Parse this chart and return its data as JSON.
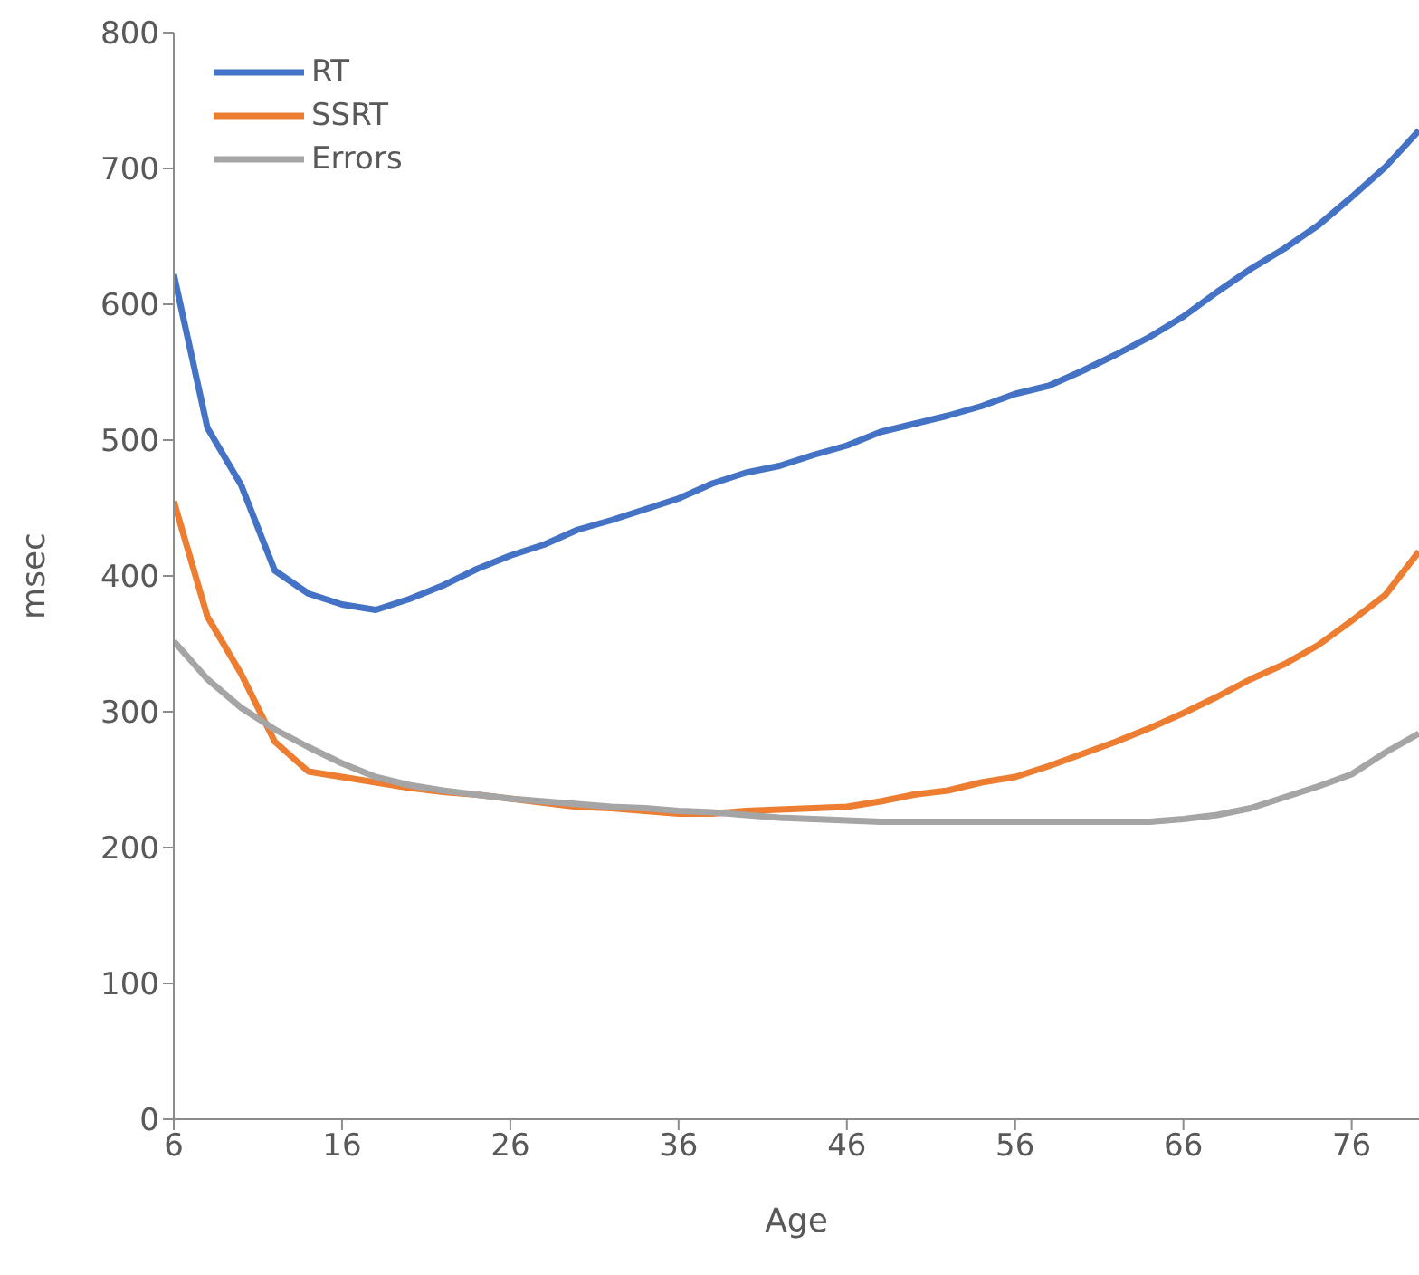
{
  "chart_data": {
    "type": "line",
    "xlabel": "Age",
    "ylabel": "msec",
    "x": [
      6,
      8,
      10,
      12,
      14,
      16,
      18,
      20,
      22,
      24,
      26,
      28,
      30,
      32,
      34,
      36,
      38,
      40,
      42,
      44,
      46,
      48,
      50,
      52,
      54,
      56,
      58,
      60,
      62,
      64,
      66,
      68,
      70,
      72,
      74,
      76,
      78,
      80
    ],
    "xlim": [
      6,
      80
    ],
    "xticks": [
      6,
      16,
      26,
      36,
      46,
      56,
      66,
      76
    ],
    "ylim": [
      0,
      800
    ],
    "yticks": [
      0,
      100,
      200,
      300,
      400,
      500,
      600,
      700,
      800
    ],
    "grid": false,
    "legend": "top left",
    "marker": "none",
    "line_style": "solid",
    "series": [
      {
        "name": "RT",
        "color": "#4472c4",
        "values": [
          622,
          509,
          467,
          404,
          387,
          379,
          375,
          383,
          393,
          405,
          415,
          423,
          434,
          441,
          449,
          457,
          468,
          476,
          481,
          489,
          496,
          506,
          512,
          518,
          525,
          534,
          540,
          551,
          563,
          576,
          591,
          609,
          626,
          641,
          658,
          679,
          701,
          728
        ]
      },
      {
        "name": "SSRT",
        "color": "#ed7d31",
        "values": [
          455,
          370,
          328,
          278,
          256,
          252,
          248,
          244,
          241,
          239,
          236,
          233,
          230,
          229,
          227,
          225,
          225,
          227,
          228,
          229,
          230,
          234,
          239,
          242,
          248,
          252,
          260,
          269,
          278,
          288,
          299,
          311,
          324,
          335,
          349,
          367,
          386,
          418
        ]
      },
      {
        "name": "Errors",
        "color": "#a5a5a5",
        "values": [
          352,
          324,
          303,
          287,
          274,
          262,
          252,
          246,
          242,
          239,
          236,
          234,
          232,
          230,
          229,
          227,
          226,
          224,
          222,
          221,
          220,
          219,
          219,
          219,
          219,
          219,
          219,
          219,
          219,
          219,
          221,
          224,
          229,
          237,
          245,
          254,
          270,
          284
        ]
      }
    ]
  }
}
